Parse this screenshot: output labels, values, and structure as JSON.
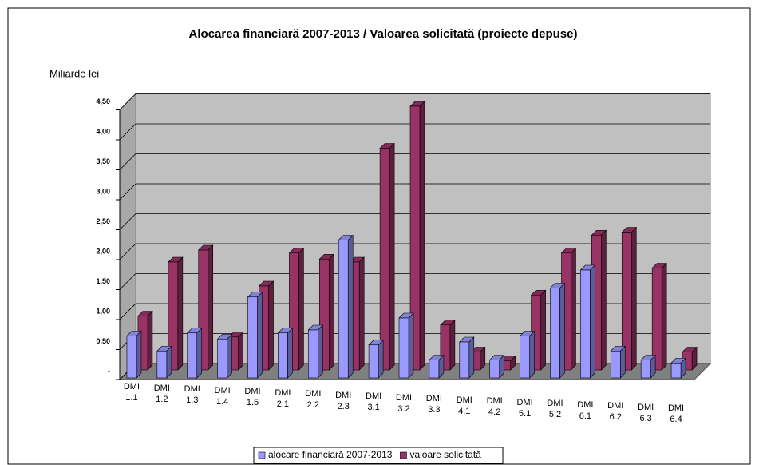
{
  "chart_data": {
    "type": "bar",
    "title": "Alocarea financiară 2007-2013 / Valoarea solicitată (proiecte depuse)",
    "ylabel": "Miliarde lei",
    "categories": [
      "DMI 1.1",
      "DMI 1.2",
      "DMI 1.3",
      "DMI 1.4",
      "DMI 1.5",
      "DMI 2.1",
      "DMI 2.2",
      "DMI 2.3",
      "DMI 3.1",
      "DMI 3.2",
      "DMI 3.3",
      "DMI 4.1",
      "DMI 4.2",
      "DMI 5.1",
      "DMI 5.2",
      "DMI 6.1",
      "DMI 6.2",
      "DMI 6.3",
      "DMI 6.4"
    ],
    "series": [
      {
        "name": "alocare financiară 2007-2013",
        "color": "#9999ff",
        "values": [
          0.7,
          0.45,
          0.75,
          0.65,
          1.35,
          0.75,
          0.8,
          2.3,
          0.55,
          1.0,
          0.3,
          0.6,
          0.3,
          0.7,
          1.5,
          1.8,
          0.45,
          0.3,
          0.25
        ]
      },
      {
        "name": "valoare solicitată",
        "color": "#993366",
        "values": [
          0.9,
          1.8,
          2.0,
          0.55,
          1.4,
          1.95,
          1.85,
          1.8,
          3.7,
          4.4,
          0.75,
          0.3,
          0.15,
          1.25,
          1.95,
          2.25,
          2.3,
          1.7,
          0.3
        ]
      }
    ],
    "ylim": [
      0,
      4.5
    ],
    "yticks": [
      {
        "value": 0,
        "label": "-"
      },
      {
        "value": 0.5,
        "label": "0,50"
      },
      {
        "value": 1,
        "label": "1,00"
      },
      {
        "value": 1.5,
        "label": "1,50"
      },
      {
        "value": 2,
        "label": "2,00"
      },
      {
        "value": 2.5,
        "label": "2,50"
      },
      {
        "value": 3,
        "label": "3,00"
      },
      {
        "value": 3.5,
        "label": "3,50"
      },
      {
        "value": 4,
        "label": "4,00"
      },
      {
        "value": 4.5,
        "label": "4,50"
      }
    ],
    "grid": true,
    "legend": "bottom"
  }
}
